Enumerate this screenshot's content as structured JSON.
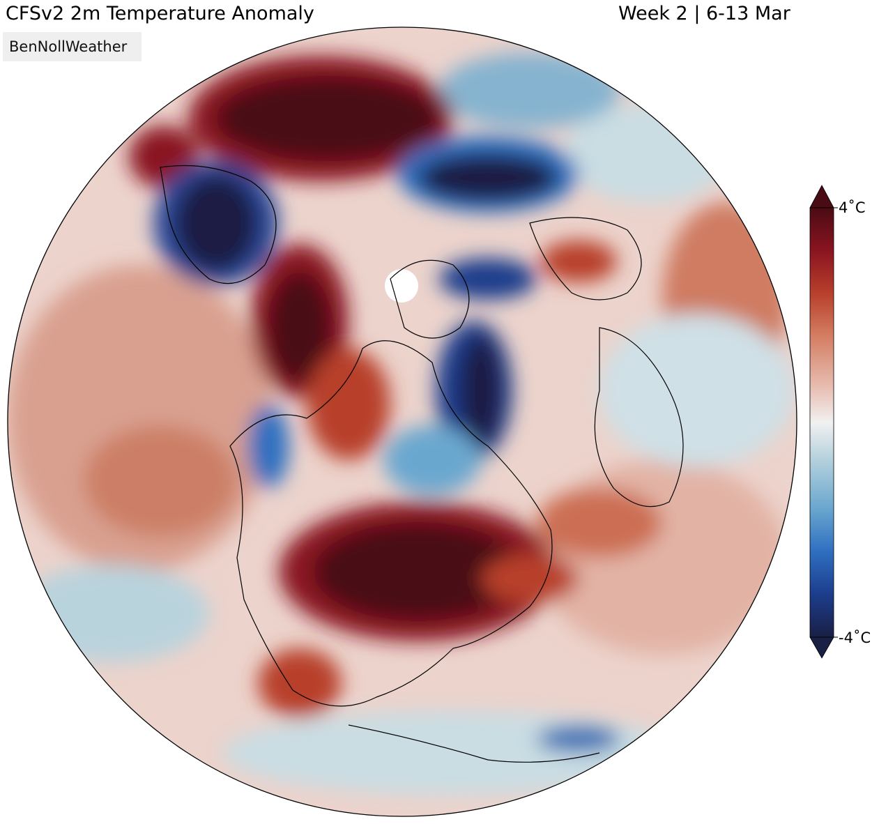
{
  "header": {
    "title": "CFSv2 2m Temperature Anomaly",
    "period": "Week 2 | 6-13 Mar"
  },
  "watermark": "BenNollWeather",
  "colorbar": {
    "max_label": "4˚C",
    "min_label": "-4˚C",
    "max": 4,
    "min": -4,
    "unit": "˚C",
    "colors": [
      "#1a1f45",
      "#1c3d8c",
      "#2f6fc0",
      "#6aa7cf",
      "#b9d3dd",
      "#f1f1f1",
      "#e8bfb3",
      "#d47e63",
      "#b8402c",
      "#8a1420",
      "#4a0c14"
    ]
  },
  "map": {
    "projection": "orthographic",
    "center": "North Pole / North America"
  }
}
